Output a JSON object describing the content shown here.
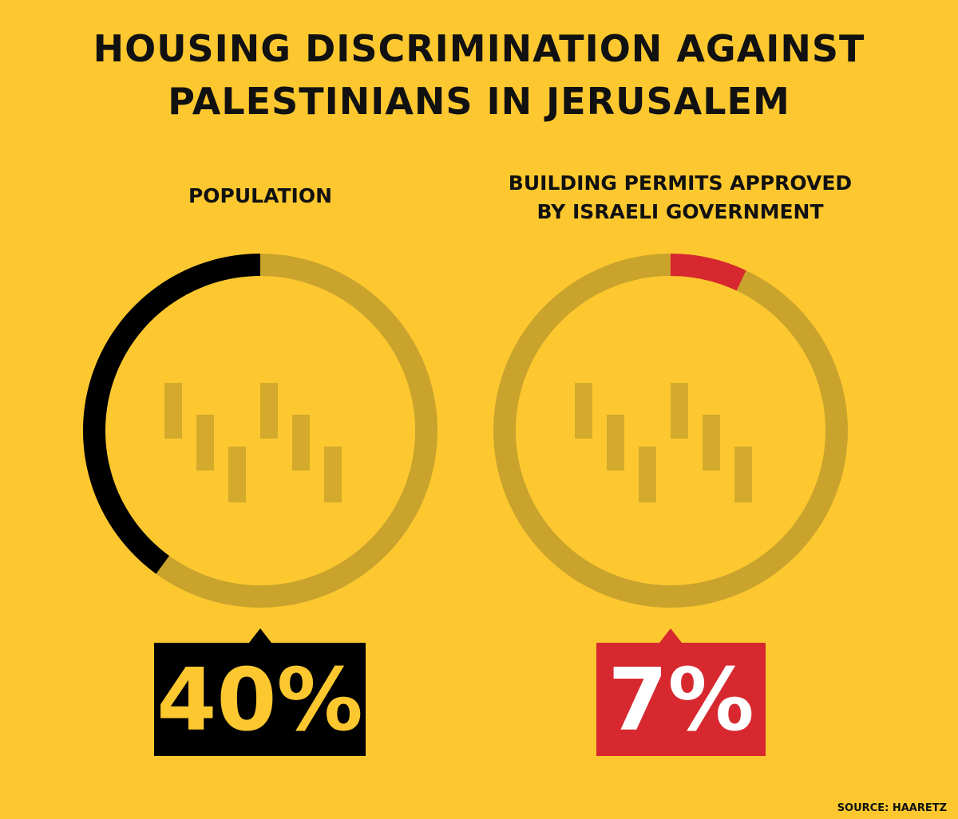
{
  "title": "HOUSING DISCRIMINATION AGAINST\nPALESTINIANS IN JERUSALEM",
  "chart_data": [
    {
      "type": "donut",
      "title": "POPULATION",
      "values": [
        40
      ],
      "value_labels": [
        "40%"
      ],
      "color": "#000000",
      "label_color": "#fdc82f",
      "track_color": "#c9a32c",
      "direction": "counterclockwise",
      "ylim": [
        0,
        100
      ]
    },
    {
      "type": "donut",
      "title": "BUILDING PERMITS APPROVED\nBY ISRAELI GOVERNMENT",
      "values": [
        7
      ],
      "value_labels": [
        "7%"
      ],
      "color": "#d7282f",
      "label_color": "#ffffff",
      "track_color": "#c9a32c",
      "direction": "clockwise",
      "ylim": [
        0,
        100
      ]
    }
  ],
  "source": "SOURCE: HAARETZ"
}
